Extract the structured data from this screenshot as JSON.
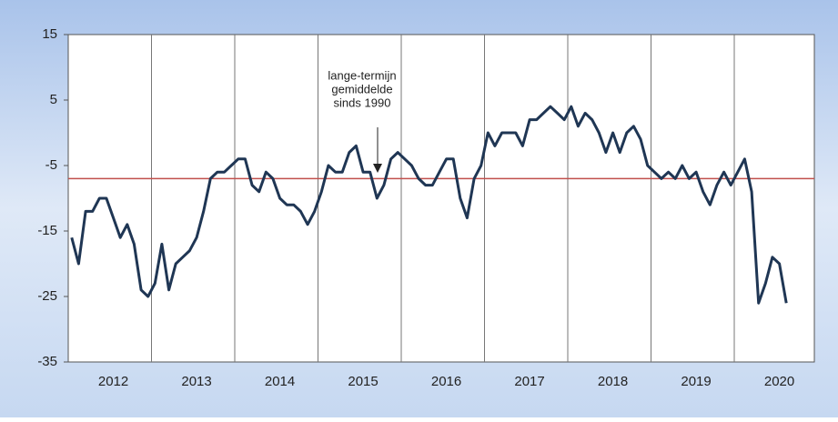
{
  "chart_data": {
    "type": "line",
    "categories": [
      null,
      null,
      null,
      null,
      null,
      null,
      "2012",
      null,
      null,
      null,
      null,
      null,
      null,
      null,
      null,
      null,
      null,
      null,
      "2013",
      null,
      null,
      null,
      null,
      null,
      null,
      null,
      null,
      null,
      null,
      null,
      "2014",
      null,
      null,
      null,
      null,
      null,
      null,
      null,
      null,
      null,
      null,
      null,
      "2015",
      null,
      null,
      null,
      null,
      null,
      null,
      null,
      null,
      null,
      null,
      null,
      "2016",
      null,
      null,
      null,
      null,
      null,
      null,
      null,
      null,
      null,
      null,
      null,
      "2017",
      null,
      null,
      null,
      null,
      null,
      null,
      null,
      null,
      null,
      null,
      null,
      "2018",
      null,
      null,
      null,
      null,
      null,
      null,
      null,
      null,
      null,
      null,
      null,
      "2019",
      null,
      null,
      null,
      null,
      null,
      null,
      null,
      null,
      null,
      null,
      null,
      "2020",
      null
    ],
    "values": [
      -16,
      -20,
      -12,
      -12,
      -10,
      -10,
      -13,
      -16,
      -14,
      -17,
      -24,
      -25,
      -23,
      -17,
      -24,
      -20,
      -19,
      -18,
      -16,
      -12,
      -7,
      -6,
      -6,
      -5,
      -4,
      -4,
      -8,
      -9,
      -6,
      -7,
      -10,
      -11,
      -11,
      -12,
      -14,
      -12,
      -9,
      -5,
      -6,
      -6,
      -3,
      -2,
      -6,
      -6,
      -10,
      -8,
      -4,
      -3,
      -4,
      -5,
      -7,
      -8,
      -8,
      -6,
      -4,
      -4,
      -10,
      -13,
      -7,
      -5,
      0,
      -2,
      0,
      0,
      0,
      -2,
      2,
      2,
      3,
      4,
      3,
      2,
      4,
      1,
      3,
      2,
      0,
      -3,
      0,
      -3,
      0,
      1,
      -1,
      -5,
      -6,
      -7,
      -6,
      -7,
      -5,
      -7,
      -6,
      -9,
      -11,
      -8,
      -6,
      -8,
      -6,
      -4,
      -9,
      -26,
      -23,
      -19,
      -20,
      -26
    ],
    "color": "#1f3654",
    "ylim": [
      -35,
      15
    ],
    "yticks": [
      -35,
      -25,
      -15,
      -5,
      5,
      15
    ],
    "reference_line": {
      "value": -7,
      "color": "#c0504d"
    },
    "annotation": [
      "lange-termijn",
      "gemiddelde",
      "sinds 1990"
    ]
  }
}
